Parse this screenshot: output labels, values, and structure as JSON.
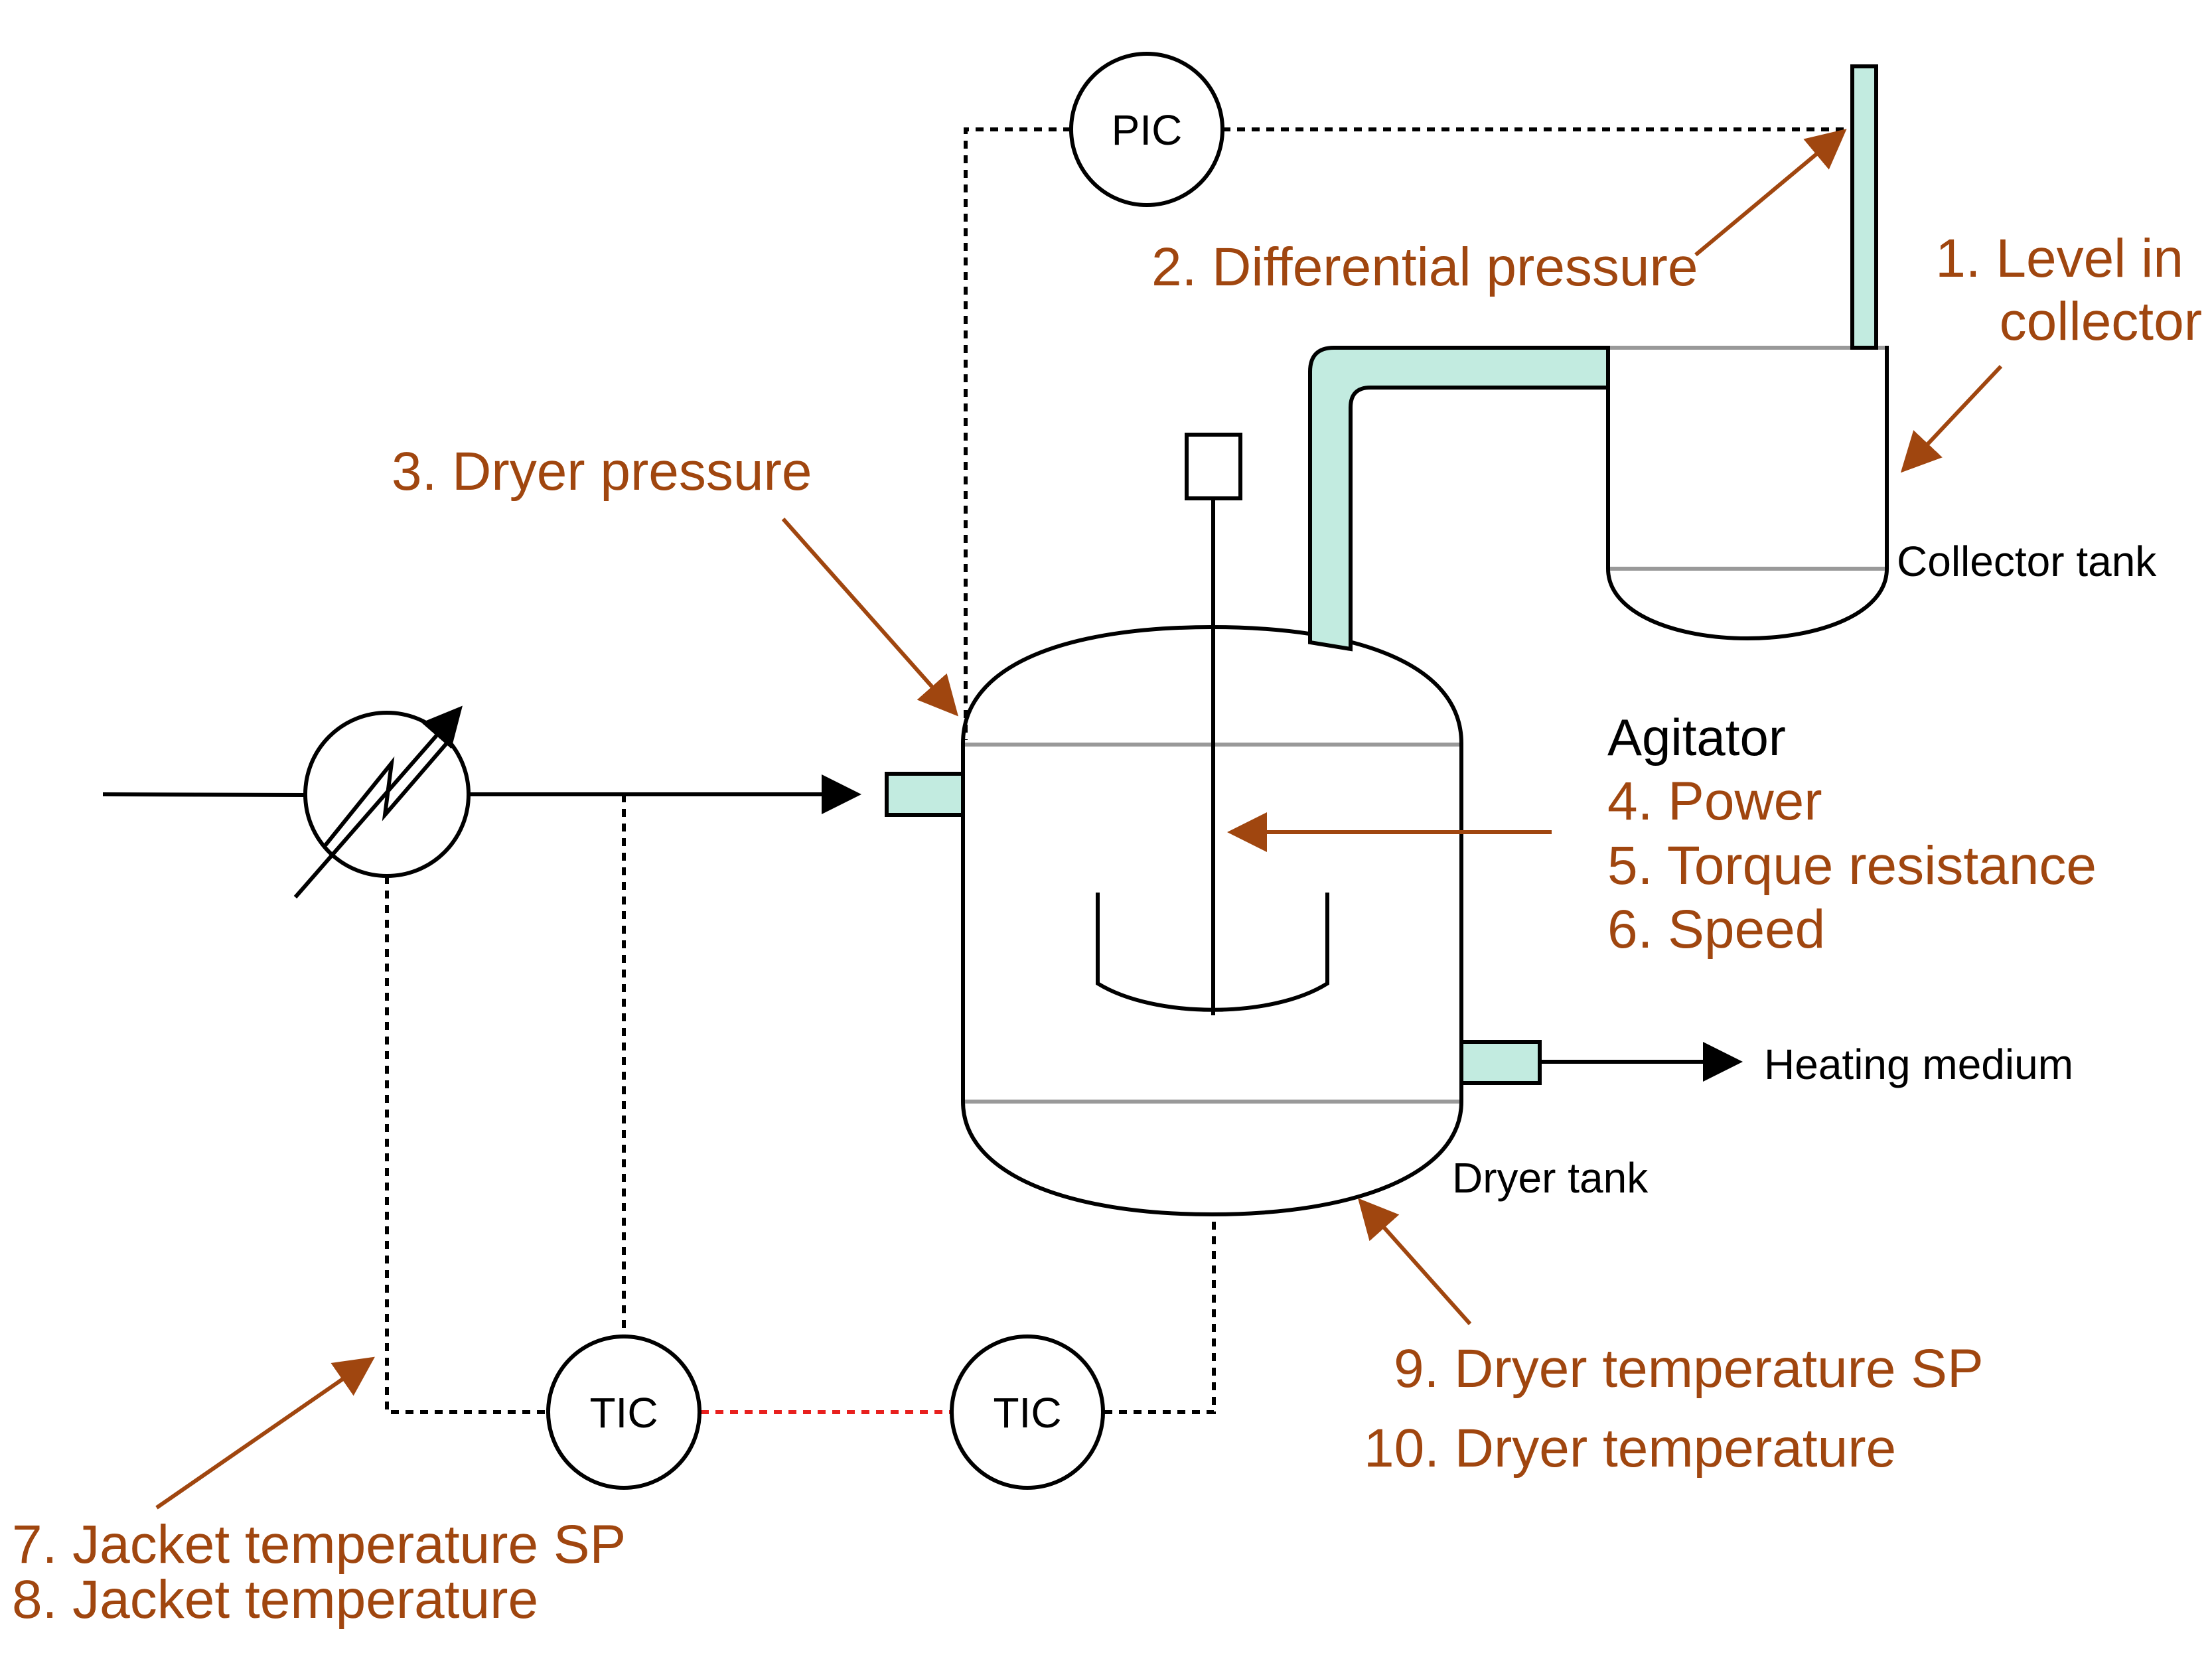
{
  "instruments": {
    "pic": "PIC",
    "tic_left": "TIC",
    "tic_right": "TIC"
  },
  "annotations": {
    "level_line1": "1. Level in",
    "level_line2": "collector",
    "diff_pressure": "2. Differential pressure",
    "dryer_pressure": "3. Dryer pressure",
    "agitator_title": "Agitator",
    "power": "4. Power",
    "torque": "5. Torque resistance",
    "speed": "6. Speed",
    "jacket_sp": "7. Jacket temperature SP",
    "jacket_temp": "8. Jacket temperature",
    "dryer_temp_sp": "9. Dryer temperature SP",
    "dryer_temp": "10. Dryer temperature"
  },
  "labels": {
    "collector_tank": "Collector tank",
    "heating_medium": "Heating medium",
    "dryer_tank": "Dryer tank"
  },
  "colors": {
    "annotation": "#a0460f",
    "pipe_fill": "#c2ebe0",
    "seam": "#999999",
    "tic_link": "#e8201e"
  }
}
